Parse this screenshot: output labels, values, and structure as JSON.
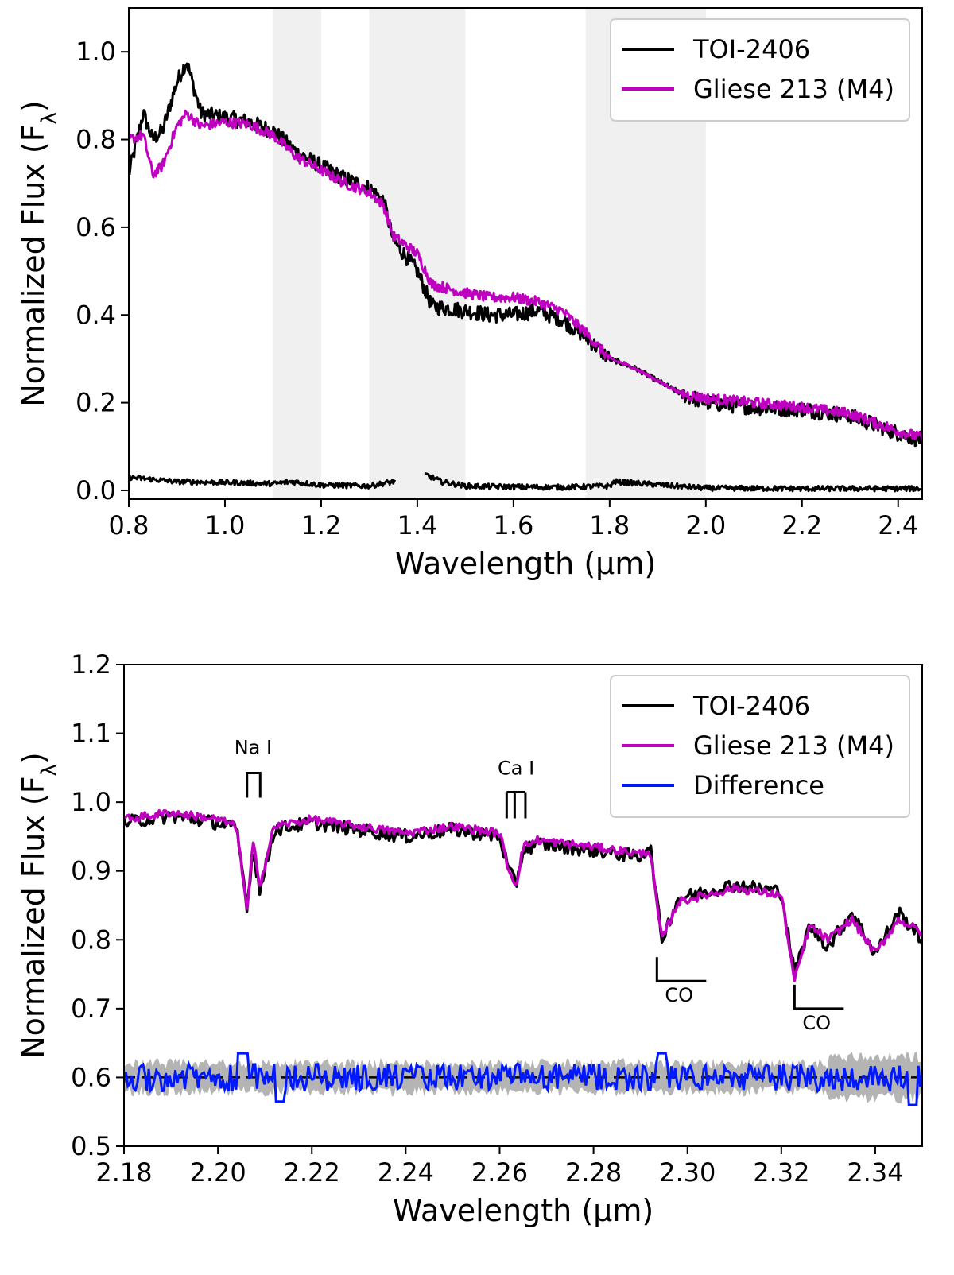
{
  "colors": {
    "target": "#000000",
    "template": "#c000c0",
    "difference": "#0018ff",
    "band": "#f0f0f0",
    "uncertainty": "#b4b4b4"
  },
  "chart_data": [
    {
      "type": "line",
      "id": "top",
      "xlabel": "Wavelength (μm)",
      "ylabel": "Normalized Flux (F",
      "ylabel_sub": "λ",
      "ylabel_close": ")",
      "xlim": [
        0.8,
        2.45
      ],
      "ylim": [
        -0.02,
        1.1
      ],
      "xticks": [
        "0.8",
        "1.0",
        "1.2",
        "1.4",
        "1.6",
        "1.8",
        "2.0",
        "2.2",
        "2.4"
      ],
      "yticks": [
        "0.0",
        "0.2",
        "0.4",
        "0.6",
        "0.8",
        "1.0"
      ],
      "shaded_regions": [
        [
          1.1,
          1.2
        ],
        [
          1.3,
          1.5
        ],
        [
          1.75,
          2.0
        ]
      ],
      "legend": {
        "position": "top-right",
        "entries": [
          "TOI-2406",
          "Gliese 213 (M4)"
        ]
      },
      "series": [
        {
          "name": "TOI-2406",
          "x": [
            0.8,
            0.83,
            0.85,
            0.87,
            0.9,
            0.92,
            0.95,
            1.0,
            1.05,
            1.1,
            1.15,
            1.2,
            1.25,
            1.3,
            1.33,
            1.35,
            1.4,
            1.43,
            1.5,
            1.55,
            1.6,
            1.65,
            1.7,
            1.75,
            1.8,
            1.85,
            1.9,
            1.95,
            2.0,
            2.1,
            2.2,
            2.3,
            2.4,
            2.45
          ],
          "values": [
            0.72,
            0.86,
            0.8,
            0.82,
            0.93,
            0.98,
            0.86,
            0.85,
            0.84,
            0.82,
            0.77,
            0.74,
            0.71,
            0.69,
            0.66,
            0.57,
            0.5,
            0.42,
            0.41,
            0.4,
            0.4,
            0.41,
            0.39,
            0.35,
            0.3,
            0.28,
            0.25,
            0.22,
            0.2,
            0.19,
            0.185,
            0.17,
            0.13,
            0.115
          ]
        },
        {
          "name": "Gliese 213 (M4)",
          "x": [
            0.8,
            0.83,
            0.85,
            0.87,
            0.9,
            0.92,
            0.95,
            1.0,
            1.05,
            1.1,
            1.15,
            1.2,
            1.25,
            1.3,
            1.33,
            1.35,
            1.4,
            1.43,
            1.5,
            1.55,
            1.6,
            1.65,
            1.7,
            1.75,
            1.8,
            1.85,
            1.9,
            1.95,
            2.0,
            2.1,
            2.2,
            2.3,
            2.4,
            2.45
          ],
          "values": [
            0.8,
            0.81,
            0.72,
            0.74,
            0.83,
            0.86,
            0.83,
            0.84,
            0.835,
            0.81,
            0.76,
            0.73,
            0.7,
            0.68,
            0.65,
            0.58,
            0.54,
            0.47,
            0.45,
            0.44,
            0.44,
            0.43,
            0.41,
            0.36,
            0.3,
            0.28,
            0.25,
            0.22,
            0.21,
            0.2,
            0.19,
            0.175,
            0.135,
            0.12
          ]
        },
        {
          "name": "TOI-2406 uncertainty",
          "x": [
            0.8,
            0.9,
            1.0,
            1.1,
            1.14,
            1.2,
            1.3,
            1.35,
            1.42,
            1.45,
            1.5,
            1.6,
            1.7,
            1.8,
            1.81,
            2.0,
            2.2,
            2.45
          ],
          "values": [
            0.03,
            0.02,
            0.018,
            0.015,
            0.02,
            0.012,
            0.01,
            0.02,
            0.035,
            0.02,
            0.01,
            0.008,
            0.007,
            0.01,
            0.02,
            0.005,
            0.004,
            0.004
          ]
        }
      ]
    },
    {
      "type": "line",
      "id": "bottom",
      "xlabel": "Wavelength (μm)",
      "ylabel": "Normalized Flux (F",
      "ylabel_sub": "λ",
      "ylabel_close": ")",
      "xlim": [
        2.18,
        2.35
      ],
      "ylim": [
        0.5,
        1.2
      ],
      "xticks": [
        "2.18",
        "2.20",
        "2.22",
        "2.24",
        "2.26",
        "2.28",
        "2.30",
        "2.32",
        "2.34"
      ],
      "yticks": [
        "0.5",
        "0.6",
        "0.7",
        "0.8",
        "0.9",
        "1.0",
        "1.1",
        "1.2"
      ],
      "difference_offset": 0.6,
      "legend": {
        "position": "top-right",
        "entries": [
          "TOI-2406",
          "Gliese 213 (M4)",
          "Difference"
        ]
      },
      "annotations": [
        {
          "label": "Na I",
          "x": 2.2075,
          "y": 1.07
        },
        {
          "label": "Ca I",
          "x": 2.2635,
          "y": 1.04
        },
        {
          "label": "CO",
          "x": 2.2935,
          "y": 0.74
        },
        {
          "label": "CO",
          "x": 2.3228,
          "y": 0.7
        }
      ],
      "series": [
        {
          "name": "TOI-2406",
          "x": [
            2.18,
            2.19,
            2.2,
            2.204,
            2.2062,
            2.2075,
            2.209,
            2.212,
            2.22,
            2.23,
            2.24,
            2.25,
            2.26,
            2.262,
            2.2635,
            2.265,
            2.268,
            2.28,
            2.29,
            2.292,
            2.2945,
            2.298,
            2.31,
            2.32,
            2.3228,
            2.326,
            2.33,
            2.335,
            2.34,
            2.345,
            2.35
          ],
          "values": [
            0.97,
            0.98,
            0.97,
            0.96,
            0.85,
            0.93,
            0.87,
            0.96,
            0.97,
            0.96,
            0.95,
            0.96,
            0.95,
            0.9,
            0.88,
            0.93,
            0.94,
            0.93,
            0.92,
            0.94,
            0.8,
            0.86,
            0.88,
            0.87,
            0.75,
            0.82,
            0.79,
            0.84,
            0.78,
            0.84,
            0.8
          ]
        },
        {
          "name": "Gliese 213 (M4)",
          "x": [
            2.18,
            2.19,
            2.2,
            2.204,
            2.2062,
            2.2075,
            2.209,
            2.212,
            2.22,
            2.23,
            2.24,
            2.25,
            2.26,
            2.262,
            2.2635,
            2.265,
            2.268,
            2.28,
            2.29,
            2.292,
            2.2945,
            2.298,
            2.31,
            2.32,
            2.3228,
            2.326,
            2.33,
            2.335,
            2.34,
            2.345,
            2.35
          ],
          "values": [
            0.975,
            0.985,
            0.975,
            0.965,
            0.84,
            0.94,
            0.88,
            0.965,
            0.975,
            0.965,
            0.955,
            0.965,
            0.955,
            0.9,
            0.88,
            0.935,
            0.945,
            0.935,
            0.925,
            0.93,
            0.8,
            0.855,
            0.875,
            0.865,
            0.74,
            0.82,
            0.8,
            0.83,
            0.78,
            0.83,
            0.81
          ]
        }
      ]
    }
  ]
}
